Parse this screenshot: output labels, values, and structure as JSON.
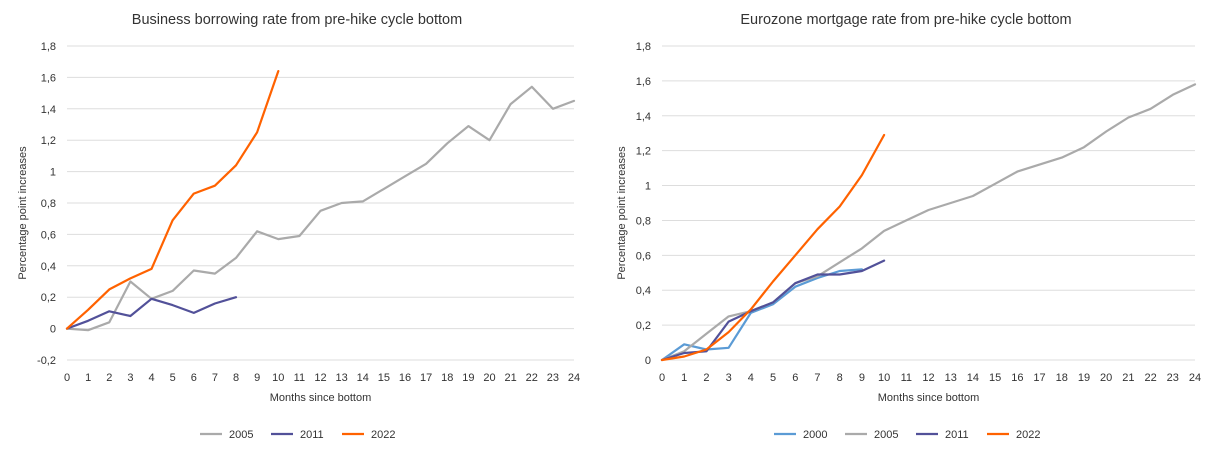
{
  "chart_data": [
    {
      "type": "line",
      "title": "Business borrowing rate from pre-hike cycle bottom",
      "xlabel": "Months since bottom",
      "ylabel": "Percentage point increases",
      "xlim": [
        0,
        24
      ],
      "ylim": [
        -0.2,
        1.8
      ],
      "yticks": [
        "-0,2",
        "0",
        "0,2",
        "0,4",
        "0,6",
        "0,8",
        "1",
        "1,2",
        "1,4",
        "1,6",
        "1,8"
      ],
      "xticks": [
        "0",
        "1",
        "2",
        "3",
        "4",
        "5",
        "6",
        "7",
        "8",
        "9",
        "10",
        "11",
        "12",
        "13",
        "14",
        "15",
        "16",
        "17",
        "18",
        "19",
        "20",
        "21",
        "22",
        "23",
        "24"
      ],
      "grid": "horizontal",
      "legend_position": "bottom",
      "series": [
        {
          "name": "2005",
          "color": "#aaaaaa",
          "x": [
            0,
            1,
            2,
            3,
            4,
            5,
            6,
            7,
            8,
            9,
            10,
            11,
            12,
            13,
            14,
            15,
            16,
            17,
            18,
            19,
            20,
            21,
            22,
            23,
            24
          ],
          "values": [
            0,
            -0.01,
            0.04,
            0.3,
            0.19,
            0.24,
            0.37,
            0.35,
            0.45,
            0.62,
            0.57,
            0.59,
            0.75,
            0.8,
            0.81,
            0.89,
            0.97,
            1.05,
            1.18,
            1.29,
            1.2,
            1.43,
            1.54,
            1.4,
            1.45
          ]
        },
        {
          "name": "2011",
          "color": "#525199",
          "x": [
            0,
            1,
            2,
            3,
            4,
            5,
            6,
            7,
            8
          ],
          "values": [
            0,
            0.05,
            0.11,
            0.08,
            0.19,
            0.15,
            0.1,
            0.16,
            0.2
          ]
        },
        {
          "name": "2022",
          "color": "#ff6200",
          "x": [
            0,
            1,
            2,
            3,
            4,
            5,
            6,
            7,
            8,
            9,
            10
          ],
          "values": [
            0,
            0.12,
            0.25,
            0.32,
            0.38,
            0.69,
            0.86,
            0.91,
            1.04,
            1.25,
            1.64
          ]
        }
      ]
    },
    {
      "type": "line",
      "title": "Eurozone mortgage rate from pre-hike cycle bottom",
      "xlabel": "Months since bottom",
      "ylabel": "Percentage point increases",
      "xlim": [
        0,
        24
      ],
      "ylim": [
        0,
        1.8
      ],
      "yticks": [
        "0",
        "0,2",
        "0,4",
        "0,6",
        "0,8",
        "1",
        "1,2",
        "1,4",
        "1,6",
        "1,8"
      ],
      "xticks": [
        "0",
        "1",
        "2",
        "3",
        "4",
        "5",
        "6",
        "7",
        "8",
        "9",
        "10",
        "11",
        "12",
        "13",
        "14",
        "15",
        "16",
        "17",
        "18",
        "19",
        "20",
        "21",
        "22",
        "23",
        "24"
      ],
      "grid": "horizontal",
      "legend_position": "bottom",
      "series": [
        {
          "name": "2000",
          "color": "#5b9bd5",
          "x": [
            0,
            1,
            2,
            3,
            4,
            5,
            6,
            7,
            8,
            9
          ],
          "values": [
            0,
            0.09,
            0.06,
            0.07,
            0.27,
            0.32,
            0.42,
            0.47,
            0.51,
            0.52
          ]
        },
        {
          "name": "2005",
          "color": "#aaaaaa",
          "x": [
            0,
            1,
            2,
            3,
            4,
            5,
            6,
            7,
            8,
            9,
            10,
            11,
            12,
            13,
            14,
            15,
            16,
            17,
            18,
            19,
            20,
            21,
            22,
            23,
            24
          ],
          "values": [
            0,
            0.05,
            0.15,
            0.25,
            0.28,
            0.33,
            0.44,
            0.48,
            0.56,
            0.64,
            0.74,
            0.8,
            0.86,
            0.9,
            0.94,
            1.01,
            1.08,
            1.12,
            1.16,
            1.22,
            1.31,
            1.39,
            1.44,
            1.52,
            1.58
          ]
        },
        {
          "name": "2011",
          "color": "#525199",
          "x": [
            0,
            1,
            2,
            3,
            4,
            5,
            6,
            7,
            8,
            9,
            10
          ],
          "values": [
            0,
            0.04,
            0.05,
            0.22,
            0.28,
            0.33,
            0.44,
            0.49,
            0.49,
            0.51,
            0.57
          ]
        },
        {
          "name": "2022",
          "color": "#ff6200",
          "x": [
            0,
            1,
            2,
            3,
            4,
            5,
            6,
            7,
            8,
            9,
            10
          ],
          "values": [
            0,
            0.02,
            0.06,
            0.16,
            0.29,
            0.45,
            0.6,
            0.75,
            0.88,
            1.06,
            1.29
          ]
        }
      ]
    }
  ]
}
